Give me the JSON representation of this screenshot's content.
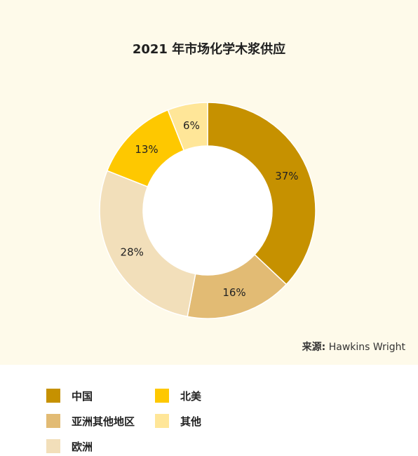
{
  "chart_data": {
    "type": "pie",
    "title": "2021 年市场化学木浆供应",
    "categories": [
      "中国",
      "亚洲其他地区",
      "欧洲",
      "北美",
      "其他"
    ],
    "values": [
      37,
      16,
      28,
      13,
      6
    ],
    "value_labels": [
      "37%",
      "16%",
      "28%",
      "13%",
      "6%"
    ],
    "colors": [
      "#c69100",
      "#e2bb74",
      "#f2dfba",
      "#fec800",
      "#ffe698"
    ],
    "donut": true
  },
  "source": {
    "label": "来源:",
    "text": "Hawkins Wright"
  },
  "legend": [
    {
      "label": "中国",
      "color": "#c69100"
    },
    {
      "label": "北美",
      "color": "#fec800"
    },
    {
      "label": "亚洲其他地区",
      "color": "#e2bb74"
    },
    {
      "label": "其他",
      "color": "#ffe698"
    },
    {
      "label": "欧洲",
      "color": "#f2dfba"
    }
  ]
}
